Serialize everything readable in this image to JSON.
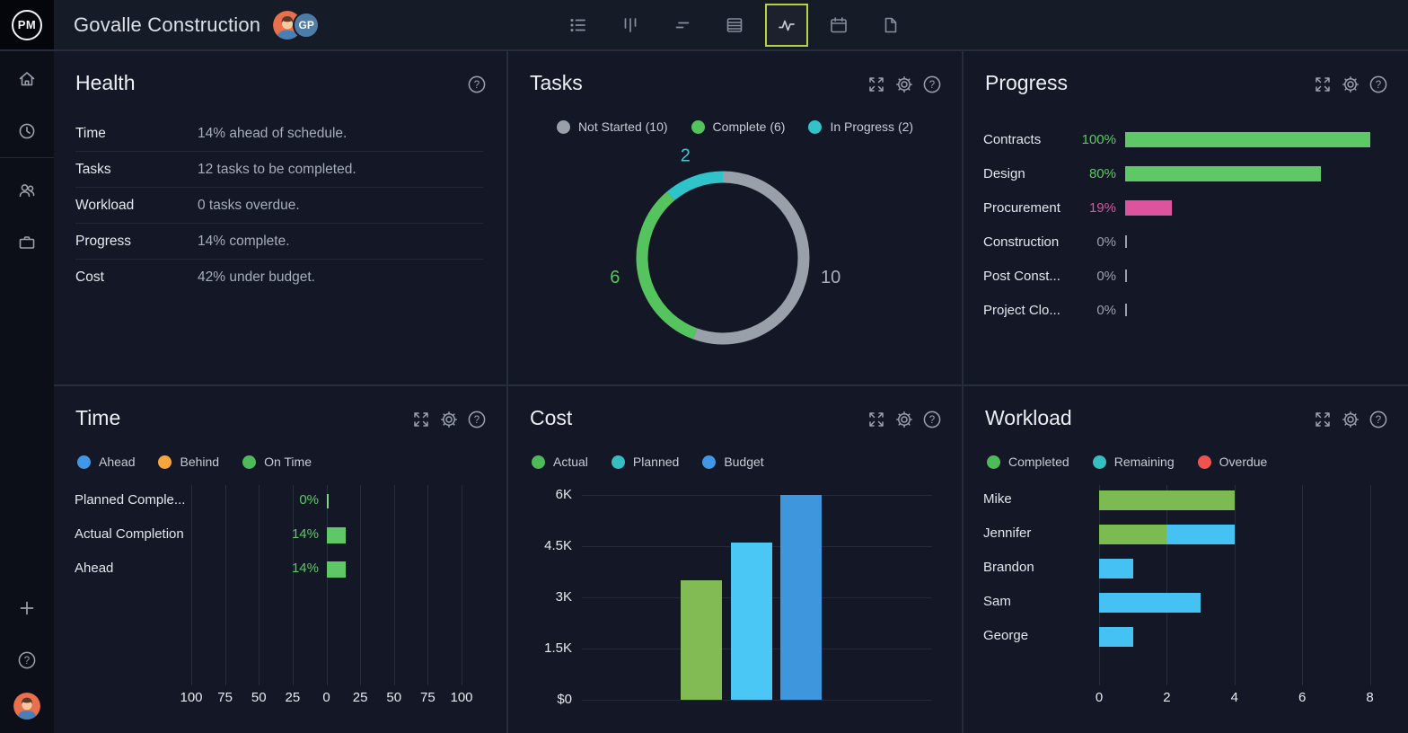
{
  "app": {
    "logo_text": "PM",
    "project_title": "Govalle Construction",
    "members": [
      {
        "label": "GP",
        "color": "#4d7ca6"
      }
    ],
    "toolbar": {
      "views": [
        "list-view",
        "board-view",
        "gantt-view",
        "sheet-view",
        "dashboard-view",
        "calendar-view",
        "files-view"
      ],
      "selected": "dashboard-view",
      "selected_border_color": "#b7d345"
    }
  },
  "sidebar": {
    "top_icons": [
      "home",
      "clock",
      "team",
      "portfolio"
    ],
    "bottom_icons": [
      "add",
      "help",
      "profile"
    ]
  },
  "panels": {
    "health": {
      "title": "Health",
      "rows": [
        {
          "label": "Time",
          "value": "14% ahead of schedule."
        },
        {
          "label": "Tasks",
          "value": "12 tasks to be completed."
        },
        {
          "label": "Workload",
          "value": "0 tasks overdue."
        },
        {
          "label": "Progress",
          "value": "14% complete."
        },
        {
          "label": "Cost",
          "value": "42% under budget."
        }
      ]
    },
    "tasks": {
      "title": "Tasks"
    },
    "progress": {
      "title": "Progress"
    },
    "time": {
      "title": "Time"
    },
    "cost": {
      "title": "Cost"
    },
    "workload": {
      "title": "Workload"
    }
  },
  "chart_data": [
    {
      "id": "tasks",
      "type": "pie",
      "donut": true,
      "total": 18,
      "start_angle": "top",
      "direction": "clockwise",
      "legend": [
        {
          "label": "Not Started (10)",
          "color": "#9aa0a9"
        },
        {
          "label": "Complete (6)",
          "color": "#53c35c"
        },
        {
          "label": "In Progress (2)",
          "color": "#32c2c8"
        }
      ],
      "slices": [
        {
          "name": "Not Started",
          "value": 10,
          "color": "#9aa0a9",
          "label": "10",
          "label_color": "#a9aeb7"
        },
        {
          "name": "Complete",
          "value": 6,
          "color": "#56c45e",
          "label": "6",
          "label_color": "#56c45e"
        },
        {
          "name": "In Progress",
          "value": 2,
          "color": "#2fc3ca",
          "label": "2",
          "label_color": "#3fc9d0"
        }
      ]
    },
    {
      "id": "progress",
      "type": "bar",
      "orientation": "horizontal",
      "xlim": [
        0,
        100
      ],
      "categories": [
        "Contracts",
        "Design",
        "Procurement",
        "Construction",
        "Post Const...",
        "Project Clo..."
      ],
      "values": [
        100,
        80,
        19,
        0,
        0,
        0
      ],
      "value_labels": [
        "100%",
        "80%",
        "19%",
        "0%",
        "0%",
        "0%"
      ],
      "bar_colors": [
        "#5ec766",
        "#5ec766",
        "#dd539e",
        "none",
        "none",
        "none"
      ],
      "value_colors": [
        "#5ec766",
        "#5ec766",
        "#dd539e",
        "#9aa1ae",
        "#9aa1ae",
        "#9aa1ae"
      ]
    },
    {
      "id": "time",
      "type": "bar",
      "orientation": "horizontal-diverging",
      "xlim": [
        -100,
        100
      ],
      "legend": [
        {
          "label": "Ahead",
          "color": "#3f97e5"
        },
        {
          "label": "Behind",
          "color": "#f6a63c"
        },
        {
          "label": "On Time",
          "color": "#4cbb58"
        }
      ],
      "categories": [
        "Planned Comple...",
        "Actual Completion",
        "Ahead"
      ],
      "values": [
        0,
        14,
        14
      ],
      "value_labels": [
        "0%",
        "14%",
        "14%"
      ],
      "bar_color": "#5ec766",
      "value_color": "#5ec766",
      "axis_tick_values": [
        -100,
        -75,
        -50,
        -25,
        0,
        25,
        50,
        75,
        100
      ],
      "axis_tick_labels": [
        "100",
        "75",
        "50",
        "25",
        "0",
        "25",
        "50",
        "75",
        "100"
      ]
    },
    {
      "id": "cost",
      "type": "bar",
      "orientation": "vertical",
      "ylim": [
        0,
        6000
      ],
      "legend": [
        {
          "label": "Actual",
          "color": "#4cbb58"
        },
        {
          "label": "Planned",
          "color": "#35bfc0"
        },
        {
          "label": "Budget",
          "color": "#3f97e5"
        }
      ],
      "categories": [
        "Actual",
        "Planned",
        "Budget"
      ],
      "values": [
        3500,
        4600,
        6000
      ],
      "bar_colors": [
        "#82ba54",
        "#4ac7f4",
        "#3e96dc"
      ],
      "ytick_values": [
        0,
        1500,
        3000,
        4500,
        6000
      ],
      "ytick_labels": [
        "$0",
        "1.5K",
        "3K",
        "4.5K",
        "6K"
      ]
    },
    {
      "id": "workload",
      "type": "bar",
      "orientation": "horizontal",
      "stacked": true,
      "xlim": [
        0,
        8
      ],
      "legend": [
        {
          "label": "Completed",
          "color": "#4cbb58"
        },
        {
          "label": "Remaining",
          "color": "#35bfc0"
        },
        {
          "label": "Overdue",
          "color": "#ee5350"
        }
      ],
      "categories": [
        "Mike",
        "Jennifer",
        "Brandon",
        "Sam",
        "George"
      ],
      "series": [
        {
          "name": "Completed",
          "color": "#7cba52",
          "values": [
            4,
            2,
            0,
            0,
            0
          ]
        },
        {
          "name": "Remaining",
          "color": "#45c2f3",
          "values": [
            0,
            2,
            1,
            3,
            1
          ]
        },
        {
          "name": "Overdue",
          "color": "#ee5350",
          "values": [
            0,
            0,
            0,
            0,
            0
          ]
        }
      ],
      "xtick_values": [
        0,
        2,
        4,
        6,
        8
      ],
      "xtick_labels": [
        "0",
        "2",
        "4",
        "6",
        "8"
      ]
    }
  ]
}
